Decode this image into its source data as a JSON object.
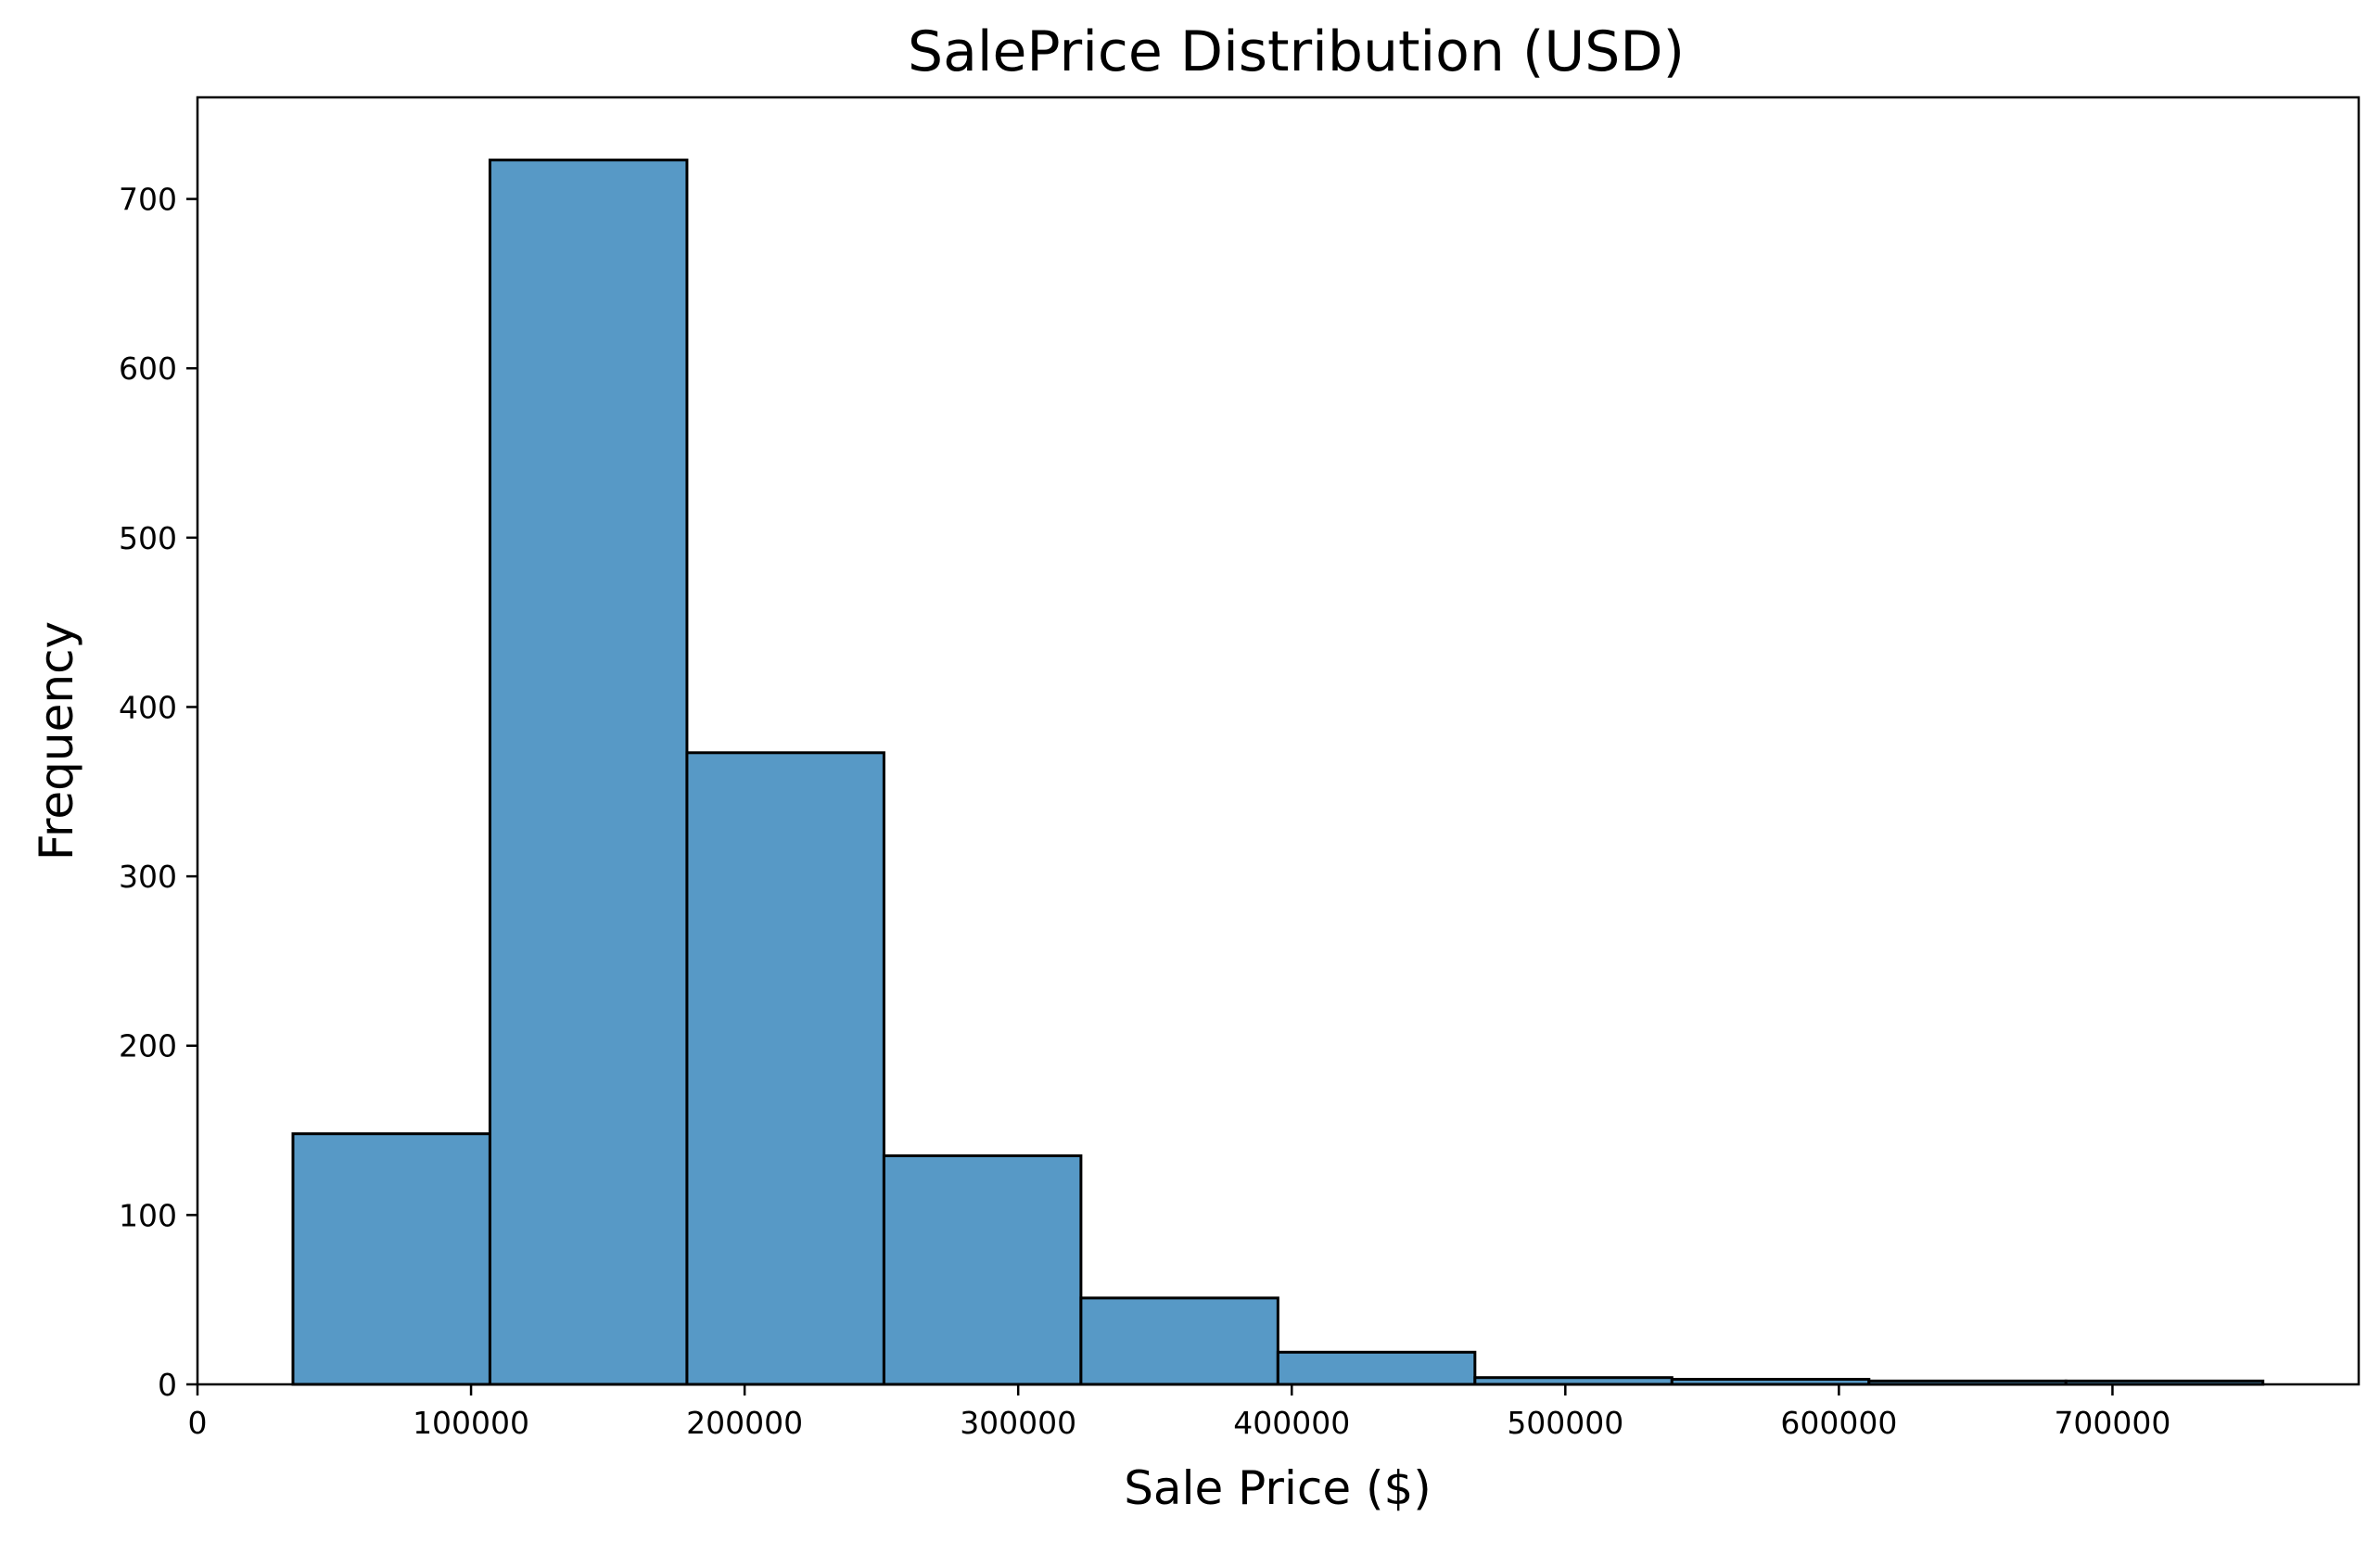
{
  "chart_data": {
    "type": "bar",
    "title": "SalePrice Distribution (USD)",
    "xlabel": "Sale Price ($)",
    "ylabel": "Frequency",
    "xlim": [
      0,
      790000
    ],
    "ylim": [
      0,
      760
    ],
    "grid": false,
    "bar_color": "#5799c6",
    "bins": [
      {
        "x0": 34900,
        "x1": 106910,
        "count": 148
      },
      {
        "x0": 106910,
        "x1": 178920,
        "count": 723
      },
      {
        "x0": 178920,
        "x1": 250930,
        "count": 373
      },
      {
        "x0": 250930,
        "x1": 322940,
        "count": 135
      },
      {
        "x0": 322940,
        "x1": 394950,
        "count": 51
      },
      {
        "x0": 394950,
        "x1": 466960,
        "count": 19
      },
      {
        "x0": 466960,
        "x1": 538970,
        "count": 4
      },
      {
        "x0": 538970,
        "x1": 610980,
        "count": 3
      },
      {
        "x0": 610980,
        "x1": 682990,
        "count": 2
      },
      {
        "x0": 682990,
        "x1": 755000,
        "count": 2
      }
    ],
    "x_ticks": [
      0,
      100000,
      200000,
      300000,
      400000,
      500000,
      600000,
      700000
    ],
    "x_tick_labels": [
      "0",
      "100000",
      "200000",
      "300000",
      "400000",
      "500000",
      "600000",
      "700000"
    ],
    "y_ticks": [
      0,
      100,
      200,
      300,
      400,
      500,
      600,
      700
    ],
    "y_tick_labels": [
      "0",
      "100",
      "200",
      "300",
      "400",
      "500",
      "600",
      "700"
    ]
  }
}
